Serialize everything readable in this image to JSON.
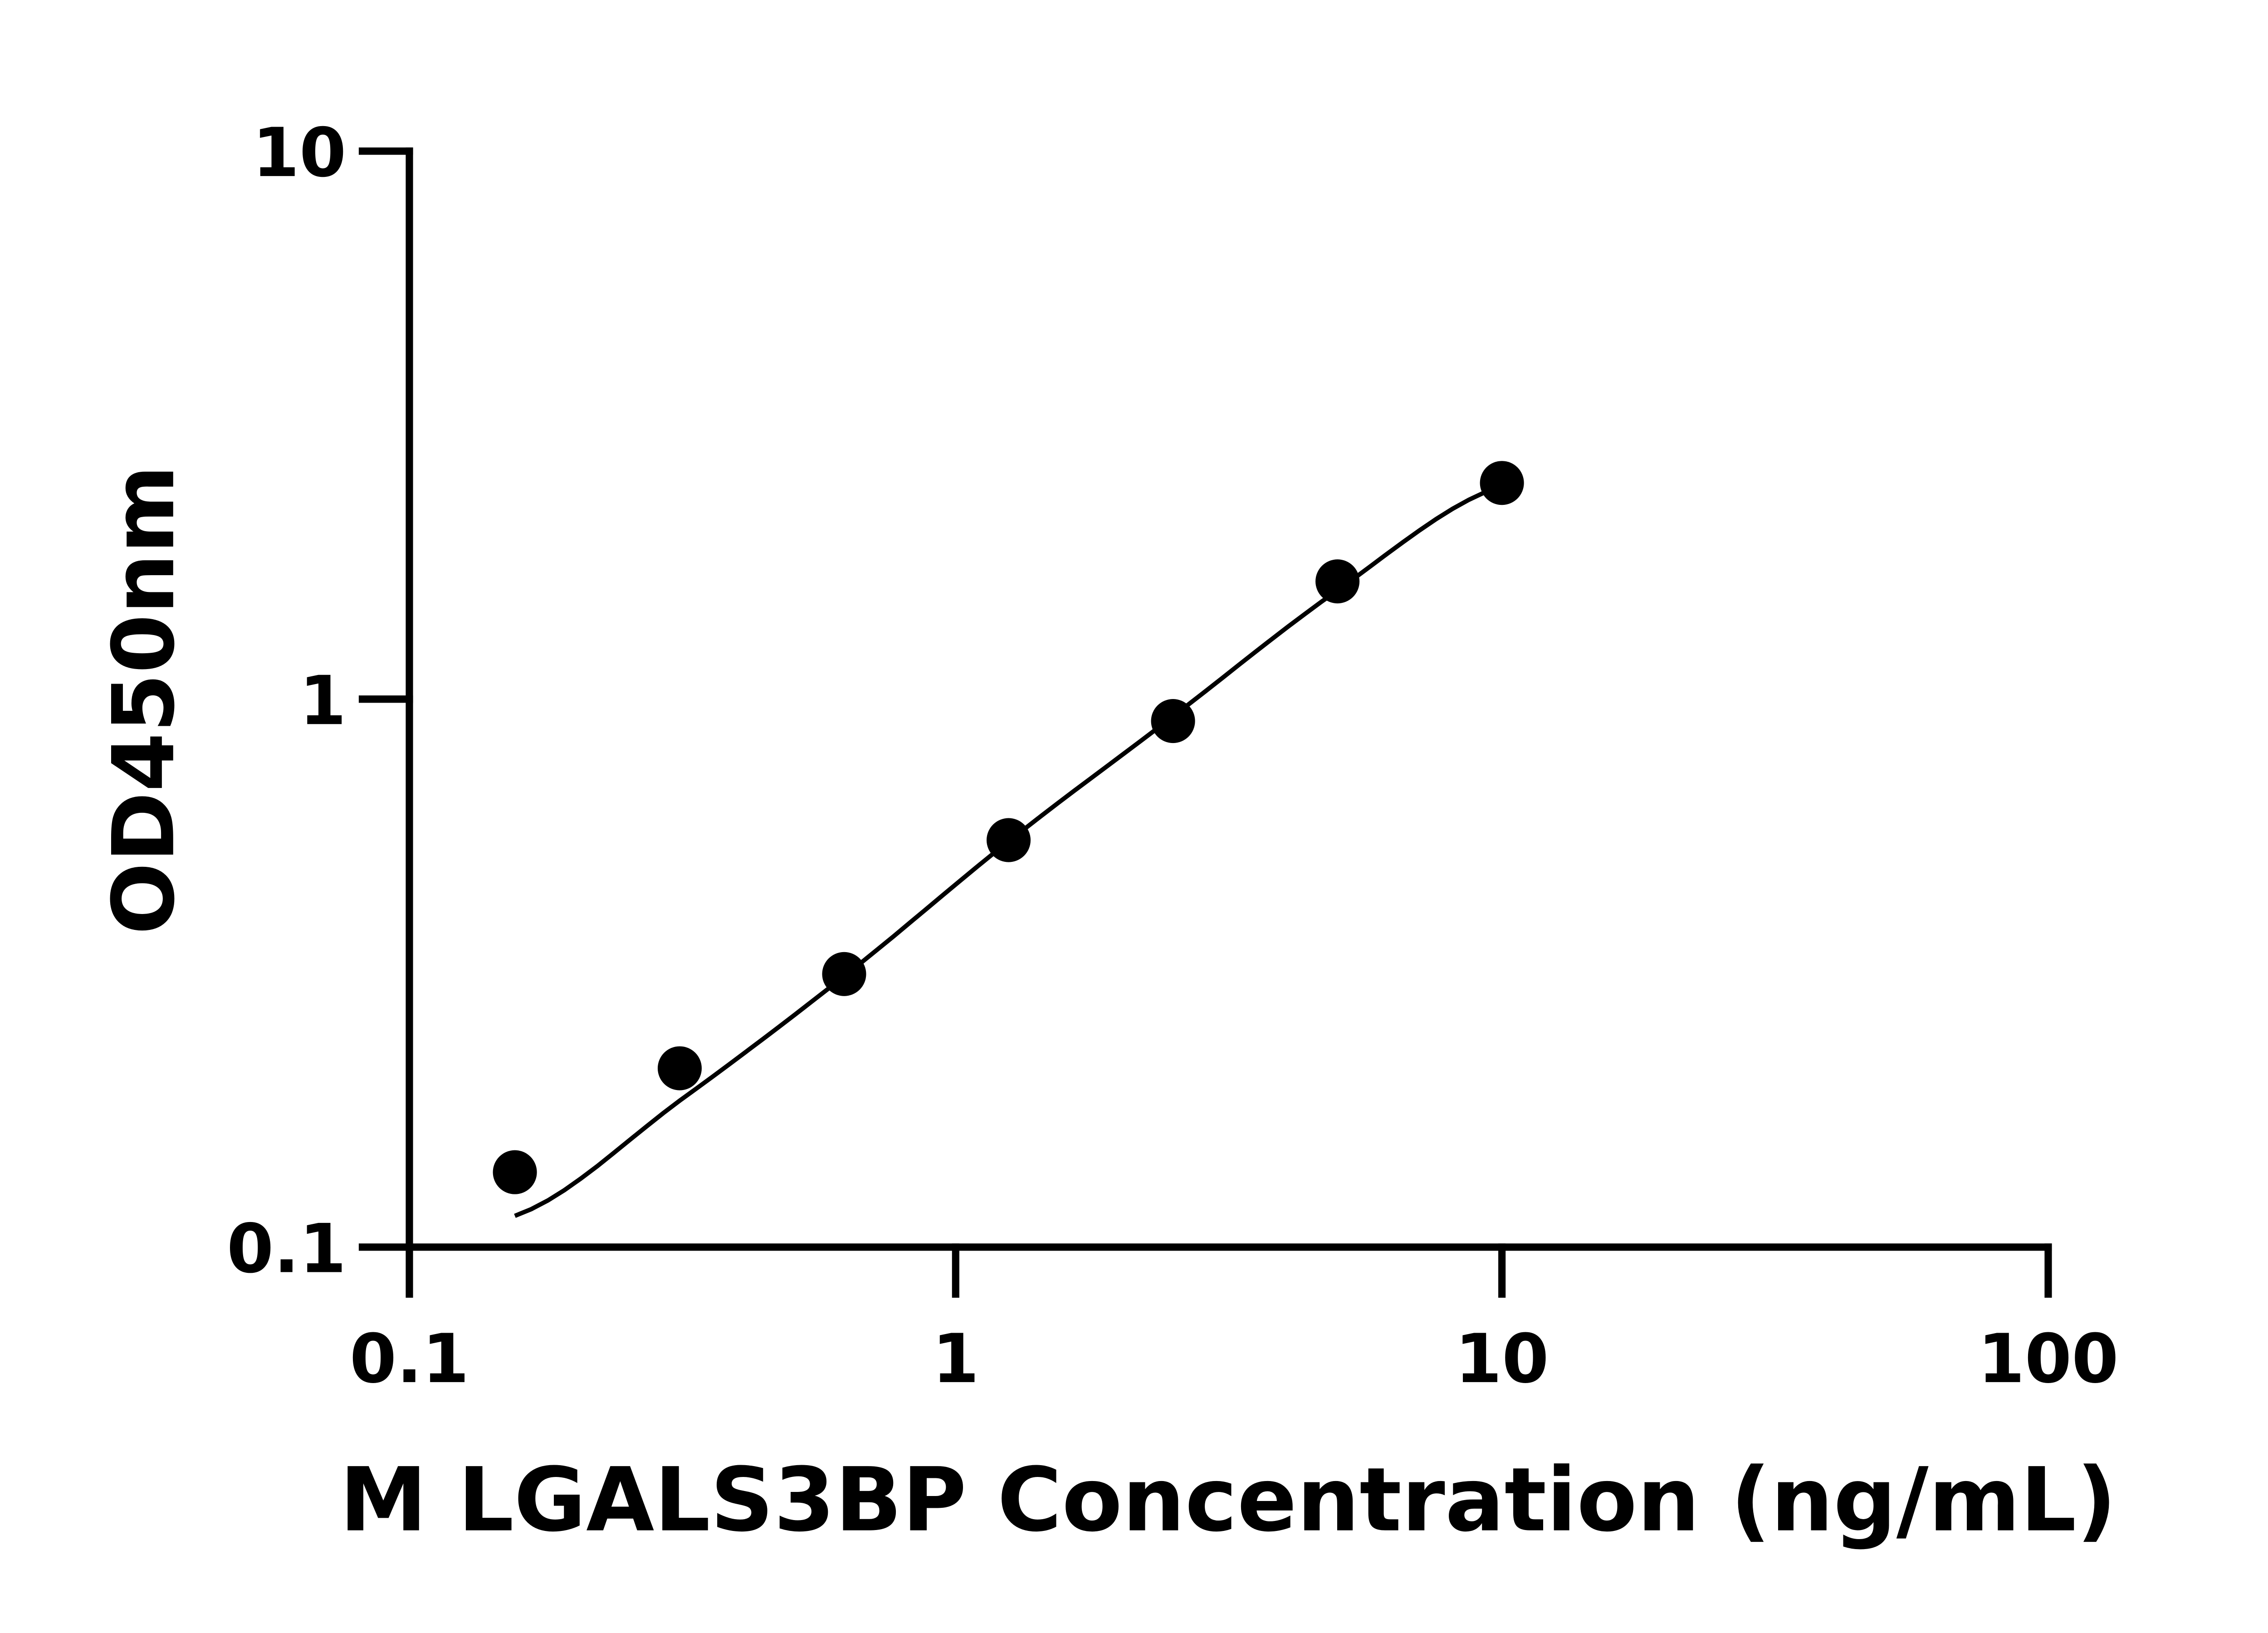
{
  "chart_data": {
    "type": "scatter",
    "title": "",
    "xlabel": "M LGALS3BP Concentration (ng/mL)",
    "ylabel": "OD450nm",
    "x_scale": "log",
    "y_scale": "log",
    "xlim": [
      0.1,
      100
    ],
    "ylim": [
      0.1,
      10
    ],
    "x_ticks": [
      "0.1",
      "1",
      "10",
      "100"
    ],
    "y_ticks": [
      "0.1",
      "1",
      "10"
    ],
    "grid": false,
    "legend": "none",
    "marker_color": "#000000",
    "series": [
      {
        "x": [
          0.156,
          0.3125,
          0.625,
          1.25,
          2.5,
          5,
          10
        ],
        "y": [
          0.137,
          0.212,
          0.315,
          0.553,
          0.912,
          1.64,
          2.48
        ]
      }
    ],
    "fit_curve": {
      "x": [
        0.156,
        0.3125,
        0.625,
        1.25,
        2.5,
        5,
        10
      ],
      "y": [
        0.114,
        0.185,
        0.312,
        0.55,
        0.93,
        1.58,
        2.45
      ]
    }
  }
}
